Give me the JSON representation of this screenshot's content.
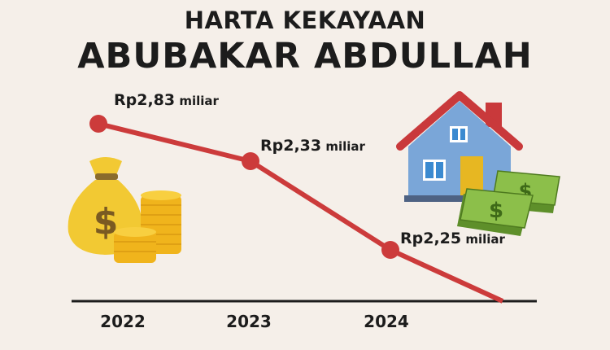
{
  "chart_data": {
    "type": "line",
    "title": "HARTA KEKAYAAN",
    "subtitle": "ABUBAKAR ABDULLAH",
    "categories": [
      "2022",
      "2023",
      "2024"
    ],
    "values": [
      2.83,
      2.33,
      2.25
    ],
    "data_labels": [
      {
        "amount": "Rp2,83",
        "unit": "miliar"
      },
      {
        "amount": "Rp2,33",
        "unit": "miliar"
      },
      {
        "amount": "Rp2,25",
        "unit": "miliar"
      }
    ],
    "line_color": "#cc3b3b",
    "grid": false,
    "decorations": [
      "money-bag-icon",
      "coin-stack-icon",
      "house-icon",
      "cash-stack-icon"
    ]
  }
}
